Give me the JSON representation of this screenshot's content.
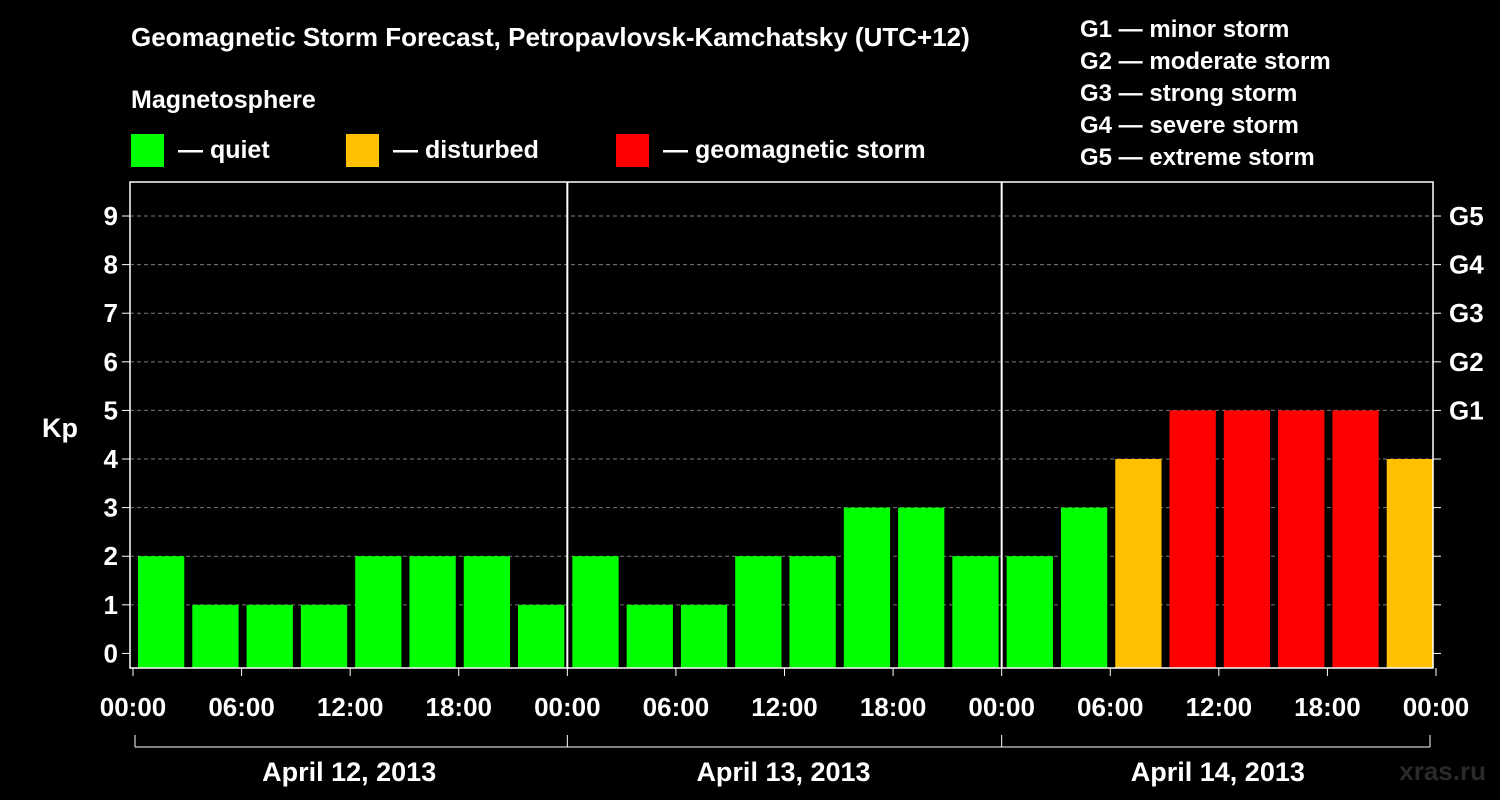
{
  "chart_data": {
    "type": "bar",
    "title": "Geomagnetic Storm Forecast, Petropavlovsk-Kamchatsky (UTC+12)",
    "subtitle": "Magnetosphere",
    "ylabel": "Kp",
    "ylim": [
      -0.3,
      9.7
    ],
    "yticks": [
      "0",
      "1",
      "2",
      "3",
      "4",
      "5",
      "6",
      "7",
      "8",
      "9"
    ],
    "grid": "dashed horizontal",
    "right_axis_labels": [
      {
        "value": 5,
        "label": "G1"
      },
      {
        "value": 6,
        "label": "G2"
      },
      {
        "value": 7,
        "label": "G3"
      },
      {
        "value": 8,
        "label": "G4"
      },
      {
        "value": 9,
        "label": "G5"
      }
    ],
    "time_ticks": [
      "00:00",
      "06:00",
      "12:00",
      "18:00",
      "00:00",
      "06:00",
      "12:00",
      "18:00",
      "00:00",
      "06:00",
      "12:00",
      "18:00",
      "00:00"
    ],
    "days": [
      "April 12, 2013",
      "April 13, 2013",
      "April 14, 2013"
    ],
    "interval_hours": 3,
    "values": [
      2,
      1,
      1,
      1,
      2,
      2,
      2,
      1,
      2,
      1,
      1,
      2,
      2,
      3,
      3,
      2,
      2,
      3,
      4,
      5,
      5,
      5,
      5,
      4
    ],
    "legend": [
      {
        "label": "— quiet",
        "color": "#00ff00",
        "range": "Kp < 4"
      },
      {
        "label": "— disturbed",
        "color": "#ffc000",
        "range": "Kp = 4"
      },
      {
        "label": "— geomagnetic storm",
        "color": "#ff0000",
        "range": "Kp >= 5"
      }
    ],
    "storm_scale": [
      "G1 — minor storm",
      "G2 — moderate storm",
      "G3 — strong storm",
      "G4 — severe storm",
      "G5 — extreme storm"
    ]
  },
  "credit": "xras.ru"
}
